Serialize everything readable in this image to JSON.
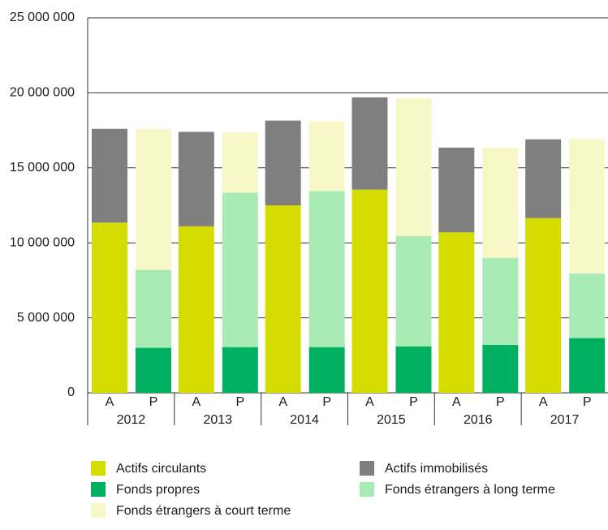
{
  "chart_data": {
    "type": "stacked_bar",
    "categories": [
      "A",
      "P",
      "A",
      "P",
      "A",
      "P",
      "A",
      "P",
      "A",
      "P",
      "A",
      "P"
    ],
    "groups": [
      "2012",
      "2013",
      "2014",
      "2015",
      "2016",
      "2017"
    ],
    "series": [
      {
        "name": "Actifs circulants",
        "color": "#d4dc00",
        "values": [
          11350000,
          null,
          11100000,
          null,
          12500000,
          null,
          13550000,
          null,
          10700000,
          null,
          11650000,
          null
        ]
      },
      {
        "name": "Actifs immobilisés",
        "color": "#7f7f7f",
        "values": [
          6250000,
          null,
          6300000,
          null,
          5650000,
          null,
          6150000,
          null,
          5650000,
          null,
          5250000,
          null
        ]
      },
      {
        "name": "Fonds propres",
        "color": "#00b060",
        "values": [
          null,
          3000000,
          null,
          3050000,
          null,
          3050000,
          null,
          3100000,
          null,
          3200000,
          null,
          3650000
        ]
      },
      {
        "name": "Fonds étrangers à long terme",
        "color": "#a8ebb4",
        "values": [
          null,
          5200000,
          null,
          10300000,
          null,
          10400000,
          null,
          7350000,
          null,
          5800000,
          null,
          4300000
        ]
      },
      {
        "name": "Fonds étrangers à court terme",
        "color": "#f8f7c8",
        "values": [
          null,
          9400000,
          null,
          4000000,
          null,
          4650000,
          null,
          9200000,
          null,
          7350000,
          null,
          8950000
        ]
      }
    ],
    "ylim": [
      0,
      25000000
    ],
    "yticks": [
      0,
      {
        "value": 5000000,
        "label": "5 000 000"
      },
      {
        "value": 10000000,
        "label": "10 000 000"
      },
      {
        "value": 15000000,
        "label": "15 000 000"
      },
      {
        "value": 20000000,
        "label": "20 000 000"
      },
      {
        "value": 25000000,
        "label": "25 000 000"
      }
    ],
    "grid": true
  }
}
